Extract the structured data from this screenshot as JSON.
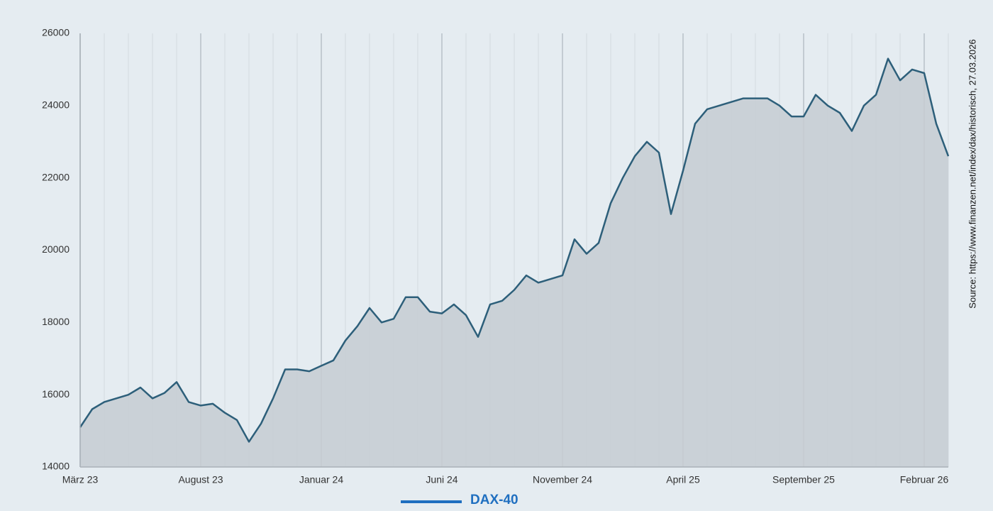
{
  "chart_data": {
    "type": "area",
    "source": "Source: https://www.finanzen.net/index/dax/historisch,  27.03.2026",
    "categories": [
      "März 23",
      null,
      null,
      null,
      null,
      null,
      null,
      null,
      null,
      null,
      "August 23",
      null,
      null,
      null,
      null,
      null,
      null,
      null,
      null,
      null,
      "Januar 24",
      null,
      null,
      null,
      null,
      null,
      null,
      null,
      null,
      null,
      "Juni 24",
      null,
      null,
      null,
      null,
      null,
      null,
      null,
      null,
      null,
      "November 24",
      null,
      null,
      null,
      null,
      null,
      null,
      null,
      null,
      null,
      "April 25",
      null,
      null,
      null,
      null,
      null,
      null,
      null,
      null,
      null,
      "September 25",
      null,
      null,
      null,
      null,
      null,
      null,
      null,
      null,
      null,
      "Februar 26",
      null,
      null
    ],
    "series": [
      {
        "name": "DAX-40",
        "color": "#2d5f7a",
        "fill": "#c6ccd2",
        "values": [
          15100,
          15600,
          15800,
          15900,
          16000,
          16200,
          15900,
          16050,
          16350,
          15800,
          15700,
          15750,
          15500,
          15300,
          14700,
          15200,
          15900,
          16700,
          16700,
          16650,
          16800,
          16950,
          17500,
          17900,
          18400,
          18000,
          18100,
          18700,
          18700,
          18300,
          18250,
          18500,
          18200,
          17600,
          18500,
          18600,
          18900,
          19300,
          19100,
          19200,
          19300,
          20300,
          19900,
          20200,
          21300,
          22000,
          22600,
          23000,
          22700,
          21000,
          22200,
          23500,
          23900,
          24000,
          24100,
          24200,
          24200,
          24200,
          24000,
          23700,
          23700,
          24300,
          24000,
          23800,
          23300,
          24000,
          24300,
          25300,
          24700,
          25000,
          24900,
          23500,
          22600
        ]
      }
    ],
    "legend_color": "#1f6fc0",
    "ylim": [
      14000,
      26000
    ],
    "yticks": [
      14000,
      16000,
      18000,
      20000,
      22000,
      24000,
      26000
    ],
    "grid": true
  }
}
